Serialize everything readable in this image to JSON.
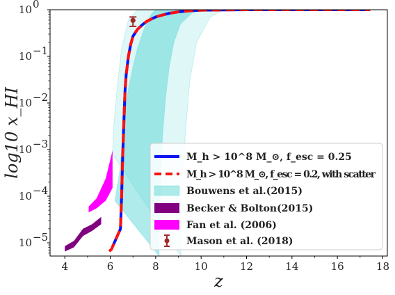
{
  "chart_data": {
    "type": "line",
    "title": "",
    "xlabel": "z",
    "ylabel": "log10 x_HI",
    "x_scale": "linear",
    "y_scale": "log",
    "xlim": [
      3.35,
      18.2
    ],
    "ylim": [
      5.2e-06,
      1.0
    ],
    "x_ticks": [
      4,
      6,
      8,
      10,
      12,
      14,
      16,
      18
    ],
    "x_tick_labels": [
      "4",
      "6",
      "8",
      "10",
      "12",
      "14",
      "16",
      "18"
    ],
    "y_ticks": [
      1e-05,
      0.0001,
      0.001,
      0.01,
      0.1,
      1
    ],
    "y_tick_labels": [
      "10",
      "10",
      "10",
      "10",
      "10",
      "10"
    ],
    "y_tick_exponents": [
      "−5",
      "−4",
      "−3",
      "−2",
      "−1",
      "0"
    ],
    "grid": false,
    "legend_position": "lower-right",
    "series": [
      {
        "name": "M_h > 10^8 M_⊙, f_esc = 0.25",
        "style": "solid",
        "color": "#0a14f0",
        "x": [
          6.1,
          6.45,
          6.5,
          6.55,
          6.6,
          6.65,
          6.7,
          6.8,
          6.9,
          7.0,
          7.2,
          7.4,
          7.6,
          7.8,
          8.0,
          8.3,
          8.6,
          9.0,
          9.5,
          10.0,
          11.0,
          12.0,
          14.0,
          16.0,
          17.45
        ],
        "y": [
          8.2e-06,
          2e-05,
          0.0001,
          0.0008,
          0.004,
          0.018,
          0.04,
          0.1,
          0.18,
          0.27,
          0.38,
          0.47,
          0.56,
          0.63,
          0.7,
          0.77,
          0.84,
          0.9,
          0.95,
          0.98,
          0.99,
          1.0,
          1.0,
          1.0,
          1.0
        ]
      },
      {
        "name": "M_h > 10^8 M_⊙, f_esc = 0.2, with scatter",
        "style": "dashed",
        "color": "#ff1010",
        "x": [
          5.95,
          6.05,
          6.1,
          6.45,
          6.5,
          6.55,
          6.6,
          6.65,
          6.7,
          6.8,
          6.9,
          7.0,
          7.2,
          7.4,
          7.6,
          7.8,
          8.0,
          8.3,
          8.6,
          9.0,
          9.5,
          10.0,
          11.0,
          12.0,
          14.0,
          16.0,
          17.45
        ],
        "y": [
          6.6e-06,
          7.2e-06,
          8.2e-06,
          2e-05,
          0.0001,
          0.0008,
          0.004,
          0.018,
          0.04,
          0.1,
          0.18,
          0.27,
          0.38,
          0.47,
          0.56,
          0.63,
          0.7,
          0.77,
          0.84,
          0.9,
          0.95,
          0.98,
          0.99,
          1.0,
          1.0,
          1.0,
          1.0
        ]
      },
      {
        "name": "Bouwens et al.(2015)",
        "style": "band",
        "color": "#40d0d0",
        "inner": {
          "left": {
            "x": [
              6.2,
              6.4,
              6.5,
              6.55,
              6.6,
              6.7,
              6.8,
              7.0,
              7.2,
              7.5,
              7.8,
              8.0
            ],
            "y": [
              8e-05,
              0.0003,
              0.001,
              0.002,
              0.004,
              0.01,
              0.02,
              0.06,
              0.15,
              0.4,
              0.8,
              1.0
            ]
          },
          "right": {
            "x": [
              8.15,
              8.2,
              8.3,
              8.45,
              8.6,
              8.8,
              9.1,
              9.6,
              10.0
            ],
            "y": [
              5.2e-06,
              0.0001,
              0.002,
              0.015,
              0.06,
              0.2,
              0.5,
              0.85,
              1.0
            ]
          }
        },
        "outer": {
          "left": {
            "x": [
              6.1,
              6.15,
              6.3,
              6.5,
              6.8,
              7.2
            ],
            "y": [
              0.0008,
              0.003,
              0.02,
              0.15,
              0.6,
              1.0
            ]
          },
          "right": {
            "x": [
              9.1,
              9.15,
              9.3,
              9.5,
              9.8,
              10.4,
              11.0
            ],
            "y": [
              5.2e-06,
              0.0001,
              0.002,
              0.03,
              0.2,
              0.7,
              1.0
            ]
          }
        }
      },
      {
        "name": "Becker & Bolton(2015)",
        "style": "band",
        "color": "#800080",
        "x": [
          4.0,
          4.4,
          4.8,
          5.2,
          5.6
        ],
        "lower": [
          6.5e-06,
          8e-06,
          1.4e-05,
          1.8e-05,
          2.5e-05
        ],
        "upper": [
          8.5e-06,
          1.1e-05,
          2e-05,
          2.5e-05,
          3.6e-05
        ]
      },
      {
        "name": "Fan et al. (2006)",
        "style": "band",
        "color": "#ff00ff",
        "x": [
          5.05,
          5.4,
          5.8,
          6.1
        ],
        "lower": [
          4.5e-05,
          5.5e-05,
          8e-05,
          0.00015
        ],
        "upper": [
          6e-05,
          9e-05,
          0.00024,
          0.00095
        ]
      },
      {
        "name": "Mason et al. (2018)",
        "style": "errorbar",
        "color": "#a0282a",
        "x": 7.0,
        "y": 0.59,
        "yerr": [
          0.15,
          0.11
        ]
      }
    ]
  }
}
